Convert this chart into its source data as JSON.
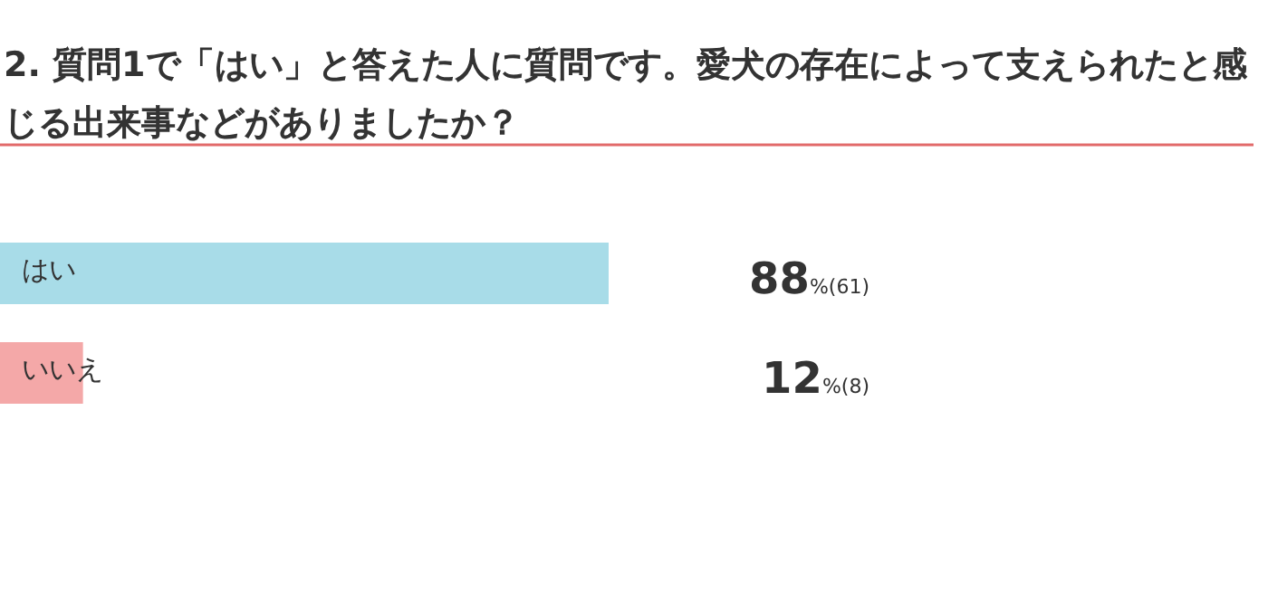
{
  "chart_data": {
    "type": "bar",
    "orientation": "horizontal",
    "title": "2. 質問1で「はい」と答えた人に質問です。愛犬の存在によって支えられたと感じる出来事などがありましたか？",
    "categories": [
      "はい",
      "いいえ"
    ],
    "values": [
      88,
      12
    ],
    "colors": [
      "#a8dce8",
      "#f4a8a8"
    ],
    "value_labels": [
      "88%(61)",
      "12%(8)"
    ]
  }
}
